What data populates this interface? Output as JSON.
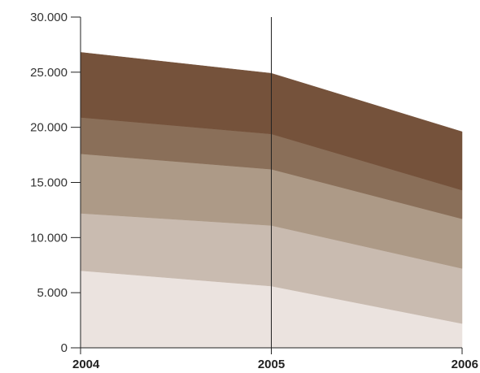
{
  "chart_data": {
    "type": "area",
    "stacked": true,
    "title": "",
    "xlabel": "",
    "ylabel": "",
    "x": [
      "2004",
      "2005",
      "2006"
    ],
    "ylim": [
      0,
      30000
    ],
    "y_ticks": [
      0,
      5000,
      10000,
      15000,
      20000,
      25000,
      30000
    ],
    "y_tick_labels": [
      "0",
      "5.000",
      "10.000",
      "15.000",
      "20.000",
      "25.000",
      "30.000"
    ],
    "grid": false,
    "legend": "none",
    "series": [
      {
        "values": [
          7000,
          5600,
          2200
        ],
        "color": "#ebe3df"
      },
      {
        "values": [
          5200,
          5500,
          5000
        ],
        "color": "#c9bbb0"
      },
      {
        "values": [
          5400,
          5100,
          4500
        ],
        "color": "#ad9a87"
      },
      {
        "values": [
          3300,
          3200,
          2600
        ],
        "color": "#8a6f59"
      },
      {
        "values": [
          5900,
          5500,
          5300
        ],
        "color": "#75523b"
      }
    ]
  }
}
